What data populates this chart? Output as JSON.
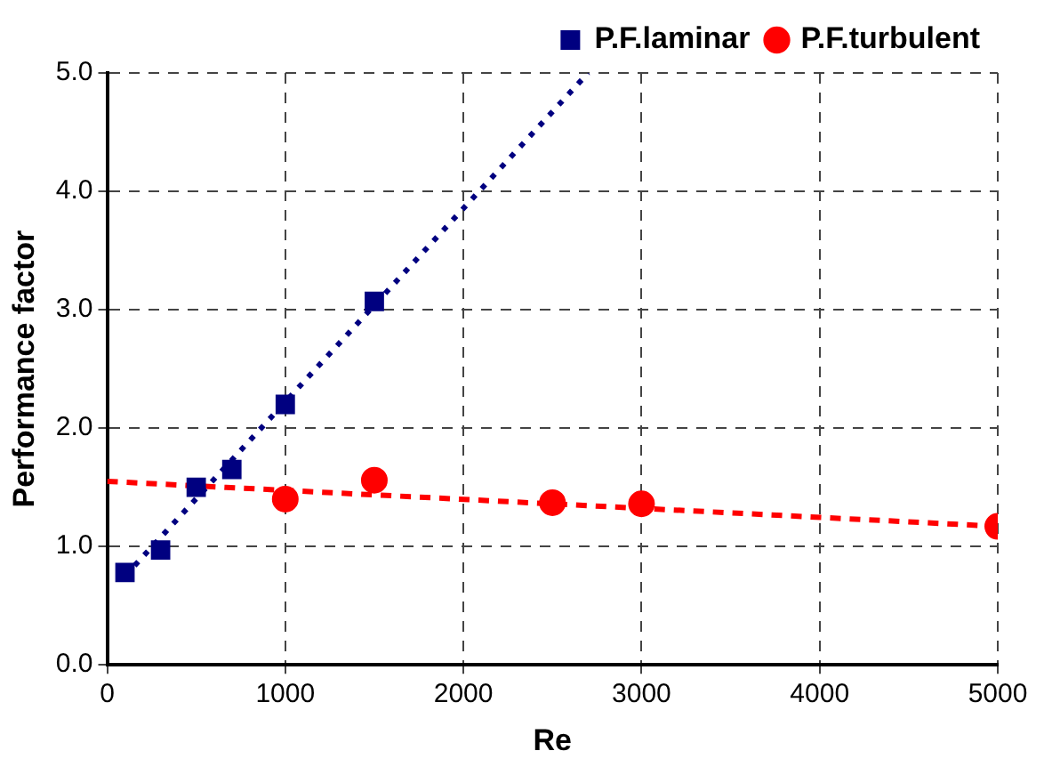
{
  "chart_data": {
    "type": "scatter",
    "xlabel": "Re",
    "ylabel": "Performance factor",
    "series": [
      {
        "name": "P.F.laminar",
        "color": "#000080",
        "marker": "square",
        "x": [
          100,
          300,
          500,
          700,
          1000,
          1500
        ],
        "values": [
          0.78,
          0.97,
          1.5,
          1.65,
          2.2,
          3.07
        ]
      },
      {
        "name": "P.F.turbulent",
        "color": "#ff0000",
        "marker": "circle",
        "x": [
          1000,
          1500,
          2500,
          3000,
          5000
        ],
        "values": [
          1.4,
          1.56,
          1.37,
          1.36,
          1.17
        ]
      },
      {
        "color": "#000080",
        "type": "line",
        "marker": "none",
        "line_style": "dotted",
        "x": [
          100,
          2700
        ],
        "values": [
          0.75,
          5.0
        ]
      },
      {
        "color": "#ff0000",
        "type": "line",
        "marker": "none",
        "line_style": "dashed",
        "x": [
          0,
          5000
        ],
        "values": [
          1.55,
          1.17
        ]
      }
    ],
    "xlim": [
      0,
      5000
    ],
    "xticks": [
      0,
      1000,
      2000,
      3000,
      4000,
      5000
    ],
    "ylim": [
      0,
      5
    ],
    "yticks": [
      {
        "value": 0,
        "label": "0.0"
      },
      {
        "value": 1,
        "label": "1.0"
      },
      {
        "value": 2,
        "label": "2.0"
      },
      {
        "value": 3,
        "label": "3.0"
      },
      {
        "value": 4,
        "label": "4.0"
      },
      {
        "value": 5,
        "label": "5.0"
      }
    ],
    "grid": true,
    "legend": "top right"
  }
}
